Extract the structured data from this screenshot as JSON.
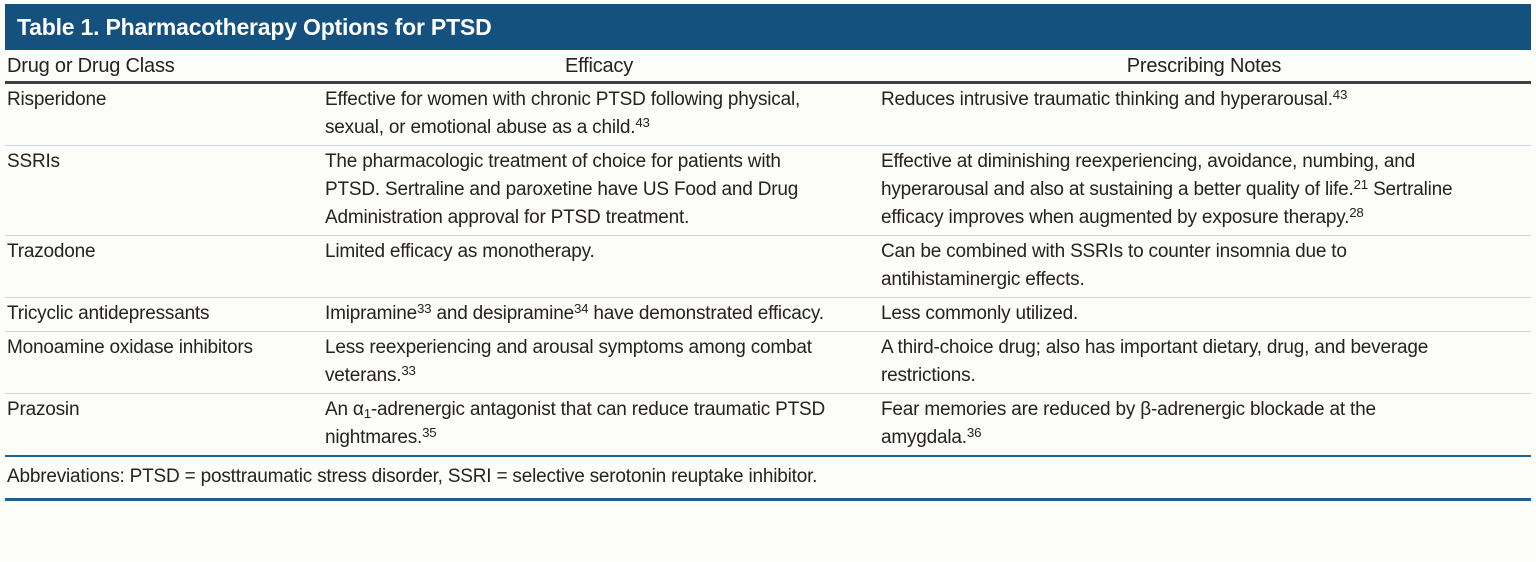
{
  "colors": {
    "title_bar": "#15517e",
    "header_rule": "#3f3f3f",
    "row_divider": "#c8d7ec",
    "section_rule": "#1f5f8e",
    "text": "#262223",
    "background": "#fcfcf9",
    "title_text": "#ffffff"
  },
  "table": {
    "title": "Table 1. Pharmacotherapy Options for PTSD",
    "columns": [
      "Drug or Drug Class",
      "Efficacy",
      "Prescribing Notes"
    ],
    "rows": [
      {
        "drug": "Risperidone",
        "efficacy": [
          {
            "text": "Effective for women with chronic PTSD following physical, sexual, or emotional abuse as a child."
          },
          {
            "text": "43",
            "style": "sup"
          }
        ],
        "notes": [
          {
            "text": "Reduces intrusive traumatic thinking and hyperarousal."
          },
          {
            "text": "43",
            "style": "sup"
          }
        ]
      },
      {
        "drug": "SSRIs",
        "efficacy": [
          {
            "text": "The pharmacologic treatment of choice for patients with PTSD. Sertraline and paroxetine have US Food and Drug Administration approval for PTSD treatment."
          }
        ],
        "notes": [
          {
            "text": "Effective at diminishing reexperiencing, avoidance, numbing, and hyperarousal and also at sustaining a better quality of life."
          },
          {
            "text": "21",
            "style": "sup"
          },
          {
            "text": " Sertraline efficacy improves when augmented by exposure therapy."
          },
          {
            "text": "28",
            "style": "sup"
          }
        ]
      },
      {
        "drug": "Trazodone",
        "efficacy": [
          {
            "text": "Limited efficacy as monotherapy."
          }
        ],
        "notes": [
          {
            "text": "Can be combined with SSRIs to counter insomnia due to antihistaminergic effects."
          }
        ]
      },
      {
        "drug": "Tricyclic antidepressants",
        "efficacy": [
          {
            "text": "Imipramine"
          },
          {
            "text": "33",
            "style": "sup"
          },
          {
            "text": " and desipramine"
          },
          {
            "text": "34",
            "style": "sup"
          },
          {
            "text": " have demonstrated efficacy."
          }
        ],
        "notes": [
          {
            "text": "Less commonly utilized."
          }
        ]
      },
      {
        "drug": "Monoamine oxidase inhibitors",
        "efficacy": [
          {
            "text": "Less reexperiencing and arousal symptoms among combat veterans."
          },
          {
            "text": "33",
            "style": "sup"
          }
        ],
        "notes": [
          {
            "text": "A third-choice drug; also has important dietary, drug, and beverage restrictions."
          }
        ]
      },
      {
        "drug": "Prazosin",
        "efficacy": [
          {
            "text": "An α"
          },
          {
            "text": "1",
            "style": "sub"
          },
          {
            "text": "-adrenergic antagonist that can reduce traumatic PTSD nightmares."
          },
          {
            "text": "35",
            "style": "sup"
          }
        ],
        "notes": [
          {
            "text": "Fear memories are reduced by β-adrenergic blockade at the amygdala."
          },
          {
            "text": "36",
            "style": "sup"
          }
        ]
      }
    ],
    "footnote": "Abbreviations: PTSD = posttraumatic stress disorder, SSRI = selective serotonin reuptake inhibitor."
  }
}
